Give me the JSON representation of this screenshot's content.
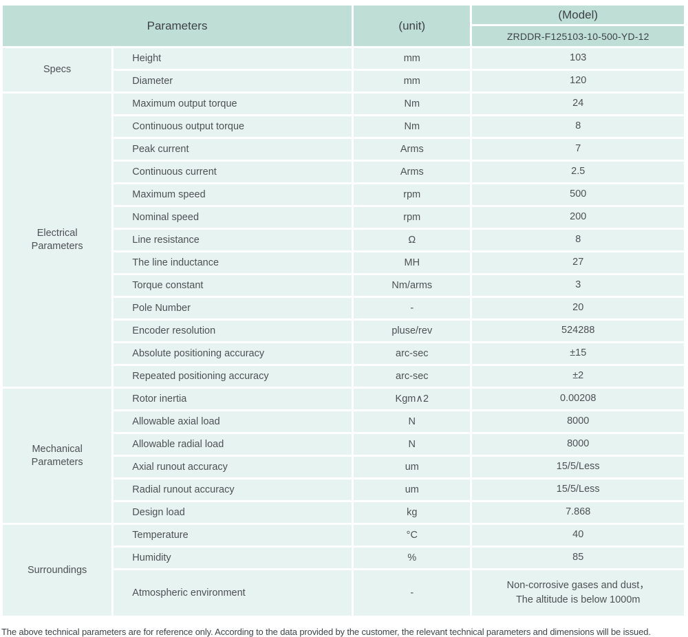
{
  "colors": {
    "header_bg": "#bfded6",
    "row_bg": "#e7f3f0",
    "divider": "#ffffff",
    "text": "#4d5153"
  },
  "table": {
    "header": {
      "parameters_label": "Parameters",
      "unit_label": "(unit)",
      "model_label": "(Model)",
      "model_value": "ZRDDR-F125103-10-500-YD-12"
    },
    "sections": [
      {
        "id": "specs",
        "name": "Specs",
        "rows": [
          {
            "param": "Height",
            "unit": "mm",
            "value": "103"
          },
          {
            "param": "Diameter",
            "unit": "mm",
            "value": "120"
          }
        ]
      },
      {
        "id": "electrical-parameters",
        "name": "Electrical\nParameters",
        "rows": [
          {
            "param": "Maximum output torque",
            "unit": "Nm",
            "value": "24"
          },
          {
            "param": "Continuous output torque",
            "unit": "Nm",
            "value": "8"
          },
          {
            "param": "Peak current",
            "unit": "Arms",
            "value": "7"
          },
          {
            "param": "Continuous current",
            "unit": "Arms",
            "value": "2.5"
          },
          {
            "param": "Maximum speed",
            "unit": "rpm",
            "value": "500"
          },
          {
            "param": "Nominal speed",
            "unit": "rpm",
            "value": "200"
          },
          {
            "param": "Line resistance",
            "unit": "Ω",
            "value": "8"
          },
          {
            "param": "The line inductance",
            "unit": "MH",
            "value": "27"
          },
          {
            "param": "Torque constant",
            "unit": "Nm/arms",
            "value": "3"
          },
          {
            "param": "Pole Number",
            "unit": "-",
            "value": "20"
          },
          {
            "param": "Encoder resolution",
            "unit": "pluse/rev",
            "value": "524288"
          },
          {
            "param": "Absolute positioning accuracy",
            "unit": "arc-sec",
            "value": "±15"
          },
          {
            "param": "Repeated positioning accuracy",
            "unit": "arc-sec",
            "value": "±2"
          }
        ]
      },
      {
        "id": "mechanical-parameters",
        "name": "Mechanical\nParameters",
        "rows": [
          {
            "param": "Rotor inertia",
            "unit": "Kgm∧2",
            "value": "0.00208"
          },
          {
            "param": "Allowable axial load",
            "unit": "N",
            "value": "8000"
          },
          {
            "param": "Allowable radial load",
            "unit": "N",
            "value": "8000"
          },
          {
            "param": "Axial runout accuracy",
            "unit": "um",
            "value": "15/5/Less"
          },
          {
            "param": "Radial runout accuracy",
            "unit": "um",
            "value": "15/5/Less"
          },
          {
            "param": "Design load",
            "unit": "kg",
            "value": "7.868"
          }
        ]
      },
      {
        "id": "surroundings",
        "name": "Surroundings",
        "rows": [
          {
            "param": "Temperature",
            "unit": "°C",
            "value": "40"
          },
          {
            "param": "Humidity",
            "unit": "%",
            "value": "85"
          },
          {
            "param": "Atmospheric environment",
            "unit": "-",
            "value": "Non-corrosive gases and dust，\nThe altitude is below 1000m",
            "tall": true
          }
        ]
      }
    ]
  },
  "footer": {
    "note": "The above technical parameters are for reference only. According to the data provided by the customer, the relevant technical parameters and dimensions will be issued."
  }
}
